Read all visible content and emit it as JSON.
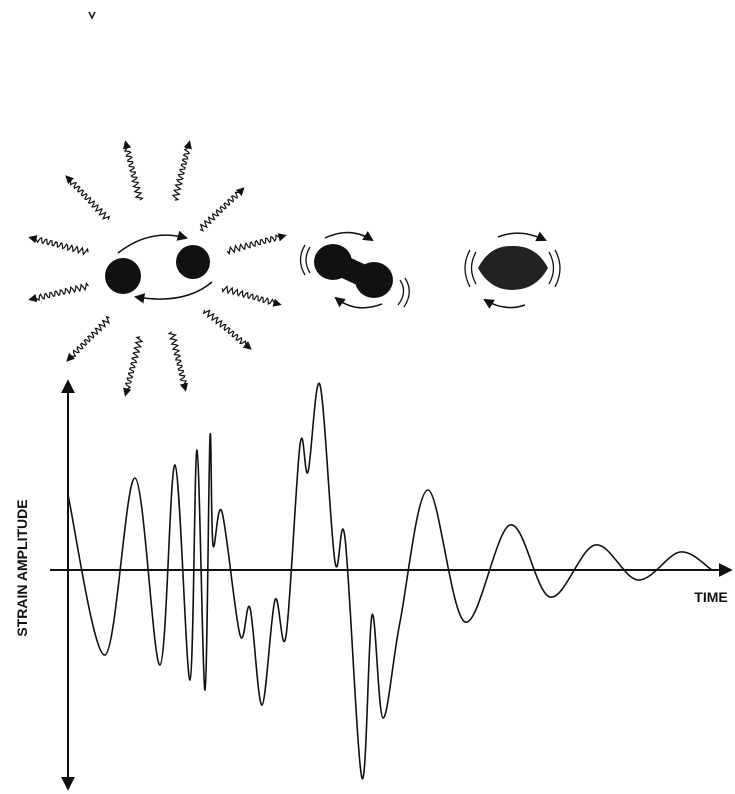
{
  "axes": {
    "y_label": "STRAIN AMPLITUDE",
    "x_label": "TIME"
  }
}
